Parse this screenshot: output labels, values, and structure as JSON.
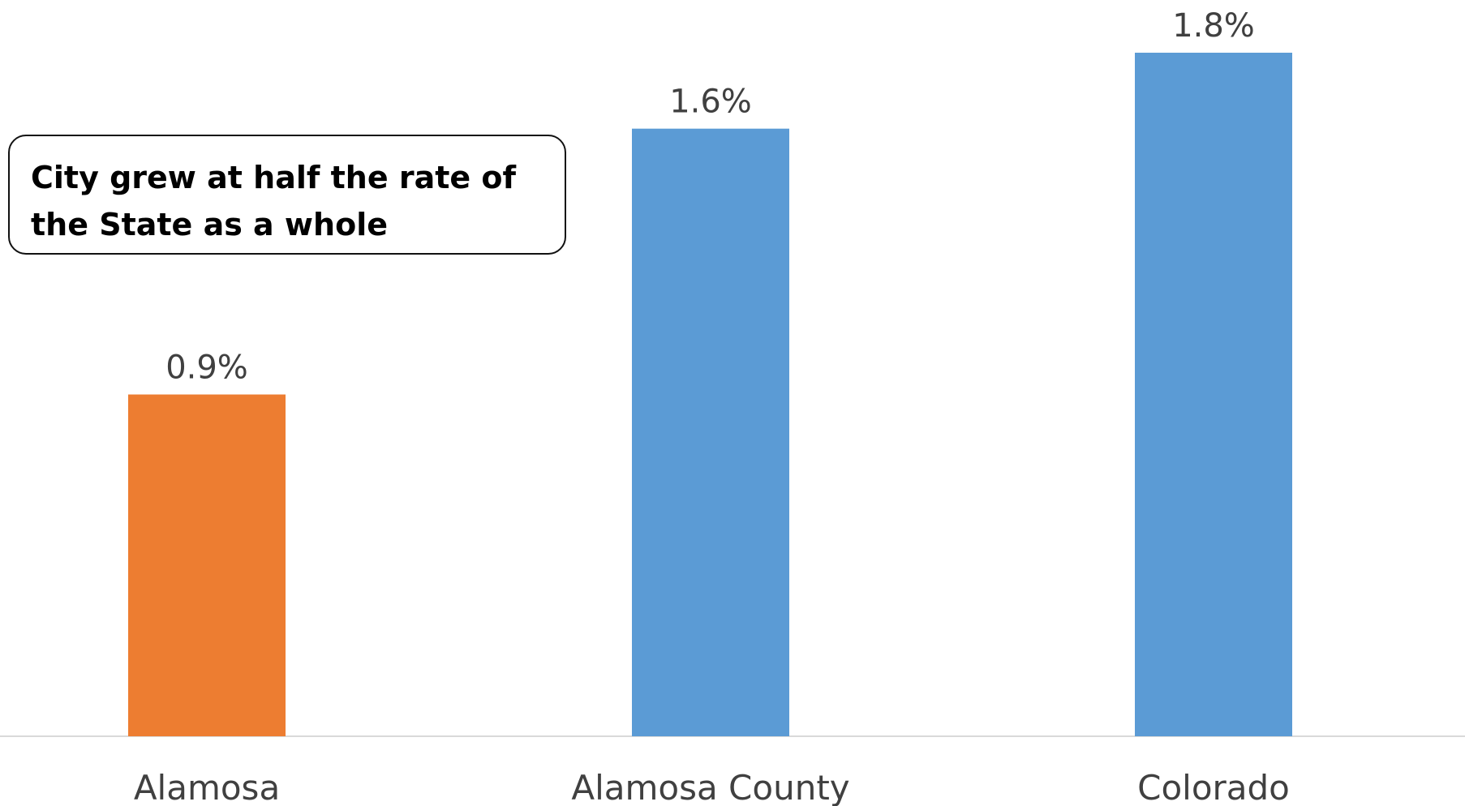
{
  "chart_data": {
    "type": "bar",
    "categories": [
      "Alamosa",
      "Alamosa County",
      "Colorado"
    ],
    "values": [
      0.9,
      1.6,
      1.8
    ],
    "value_labels": [
      "0.9%",
      "1.6%",
      "1.8%"
    ],
    "bar_colors": [
      "#ED7D31",
      "#5B9BD5",
      "#5B9BD5"
    ],
    "ylim": [
      0,
      1.8
    ],
    "grid": false,
    "legend": "none",
    "title": "",
    "xlabel": "",
    "ylabel": ""
  },
  "callout": {
    "text": "City grew at half the rate of the State as a whole"
  },
  "colors": {
    "axis_line": "#D9D9D9",
    "label_text": "#404040",
    "highlight": "#ED7D31",
    "primary": "#5B9BD5"
  }
}
